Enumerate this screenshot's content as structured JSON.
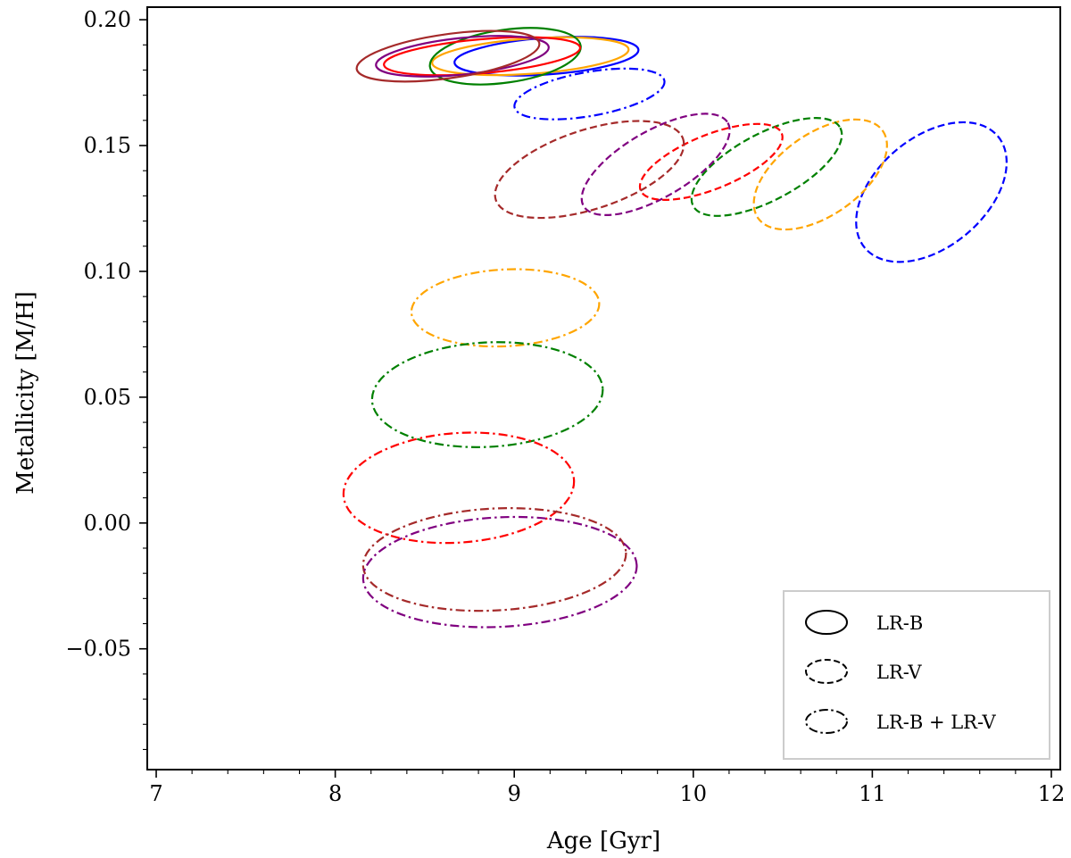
{
  "chart_data": {
    "type": "scatter",
    "title": "",
    "xlabel": "Age [Gyr]",
    "ylabel": "Metallicity [M/H]",
    "xlim": [
      6.95,
      12.05
    ],
    "ylim": [
      -0.098,
      0.205
    ],
    "xticks": [
      7,
      8,
      9,
      10,
      11,
      12
    ],
    "xtick_labels": [
      "7",
      "8",
      "9",
      "10",
      "11",
      "12"
    ],
    "yticks": [
      -0.05,
      0.0,
      0.05,
      0.1,
      0.15,
      0.2
    ],
    "ytick_labels": [
      "−0.05",
      "0.00",
      "0.05",
      "0.10",
      "0.15",
      "0.20"
    ],
    "x_minor_step": 0.2,
    "y_minor_step": 0.01,
    "grid": false,
    "legend_position": "bottom-right",
    "legend": [
      {
        "label": "LR-B",
        "style": "solid"
      },
      {
        "label": "LR-V",
        "style": "dashed"
      },
      {
        "label": "LR-B + LR-V",
        "style": "dashdot"
      }
    ],
    "series": [
      {
        "name": "LR-B",
        "style": "solid",
        "ellipses": [
          {
            "color": "#0000ff",
            "cx": 9.18,
            "cy": 0.1855,
            "w": 1.03,
            "h": 0.0145,
            "angle": -4
          },
          {
            "color": "#ffa500",
            "cx": 9.09,
            "cy": 0.1855,
            "w": 1.1,
            "h": 0.014,
            "angle": -4
          },
          {
            "color": "#008000",
            "cx": 8.95,
            "cy": 0.1855,
            "w": 0.85,
            "h": 0.021,
            "angle": -8
          },
          {
            "color": "#ff0000",
            "cx": 8.82,
            "cy": 0.1855,
            "w": 1.1,
            "h": 0.0135,
            "angle": -5
          },
          {
            "color": "#800080",
            "cx": 8.71,
            "cy": 0.1855,
            "w": 0.97,
            "h": 0.0145,
            "angle": -6
          },
          {
            "color": "#a52a2a",
            "cx": 8.63,
            "cy": 0.1855,
            "w": 1.03,
            "h": 0.0175,
            "angle": -8
          }
        ]
      },
      {
        "name": "LR-V",
        "style": "dashed",
        "ellipses": [
          {
            "color": "#0000ff",
            "cx": 11.33,
            "cy": 0.1315,
            "w": 0.97,
            "h": 0.0435,
            "angle": -40
          },
          {
            "color": "#ffa500",
            "cx": 10.71,
            "cy": 0.1385,
            "w": 0.85,
            "h": 0.0325,
            "angle": -35
          },
          {
            "color": "#008000",
            "cx": 10.41,
            "cy": 0.1415,
            "w": 0.93,
            "h": 0.0265,
            "angle": -28
          },
          {
            "color": "#ff0000",
            "cx": 10.1,
            "cy": 0.1435,
            "w": 0.85,
            "h": 0.0215,
            "angle": -22
          },
          {
            "color": "#800080",
            "cx": 9.79,
            "cy": 0.1425,
            "w": 0.93,
            "h": 0.0265,
            "angle": -30
          },
          {
            "color": "#a52a2a",
            "cx": 9.42,
            "cy": 0.1405,
            "w": 1.1,
            "h": 0.0315,
            "angle": -18
          }
        ]
      },
      {
        "name": "LR-B + LR-V",
        "style": "dashdot",
        "ellipses": [
          {
            "color": "#0000ff",
            "cx": 9.42,
            "cy": 0.1705,
            "w": 0.85,
            "h": 0.0175,
            "angle": -10
          },
          {
            "color": "#ffa500",
            "cx": 8.95,
            "cy": 0.0855,
            "w": 1.05,
            "h": 0.0305,
            "angle": -3
          },
          {
            "color": "#008000",
            "cx": 8.85,
            "cy": 0.051,
            "w": 1.29,
            "h": 0.0415,
            "angle": -3
          },
          {
            "color": "#ff0000",
            "cx": 8.69,
            "cy": 0.014,
            "w": 1.29,
            "h": 0.0435,
            "angle": -4
          },
          {
            "color": "#a52a2a",
            "cx": 8.89,
            "cy": -0.0145,
            "w": 1.47,
            "h": 0.0405,
            "angle": -3
          },
          {
            "color": "#800080",
            "cx": 8.92,
            "cy": -0.0195,
            "w": 1.53,
            "h": 0.0435,
            "angle": -3
          }
        ]
      }
    ]
  }
}
